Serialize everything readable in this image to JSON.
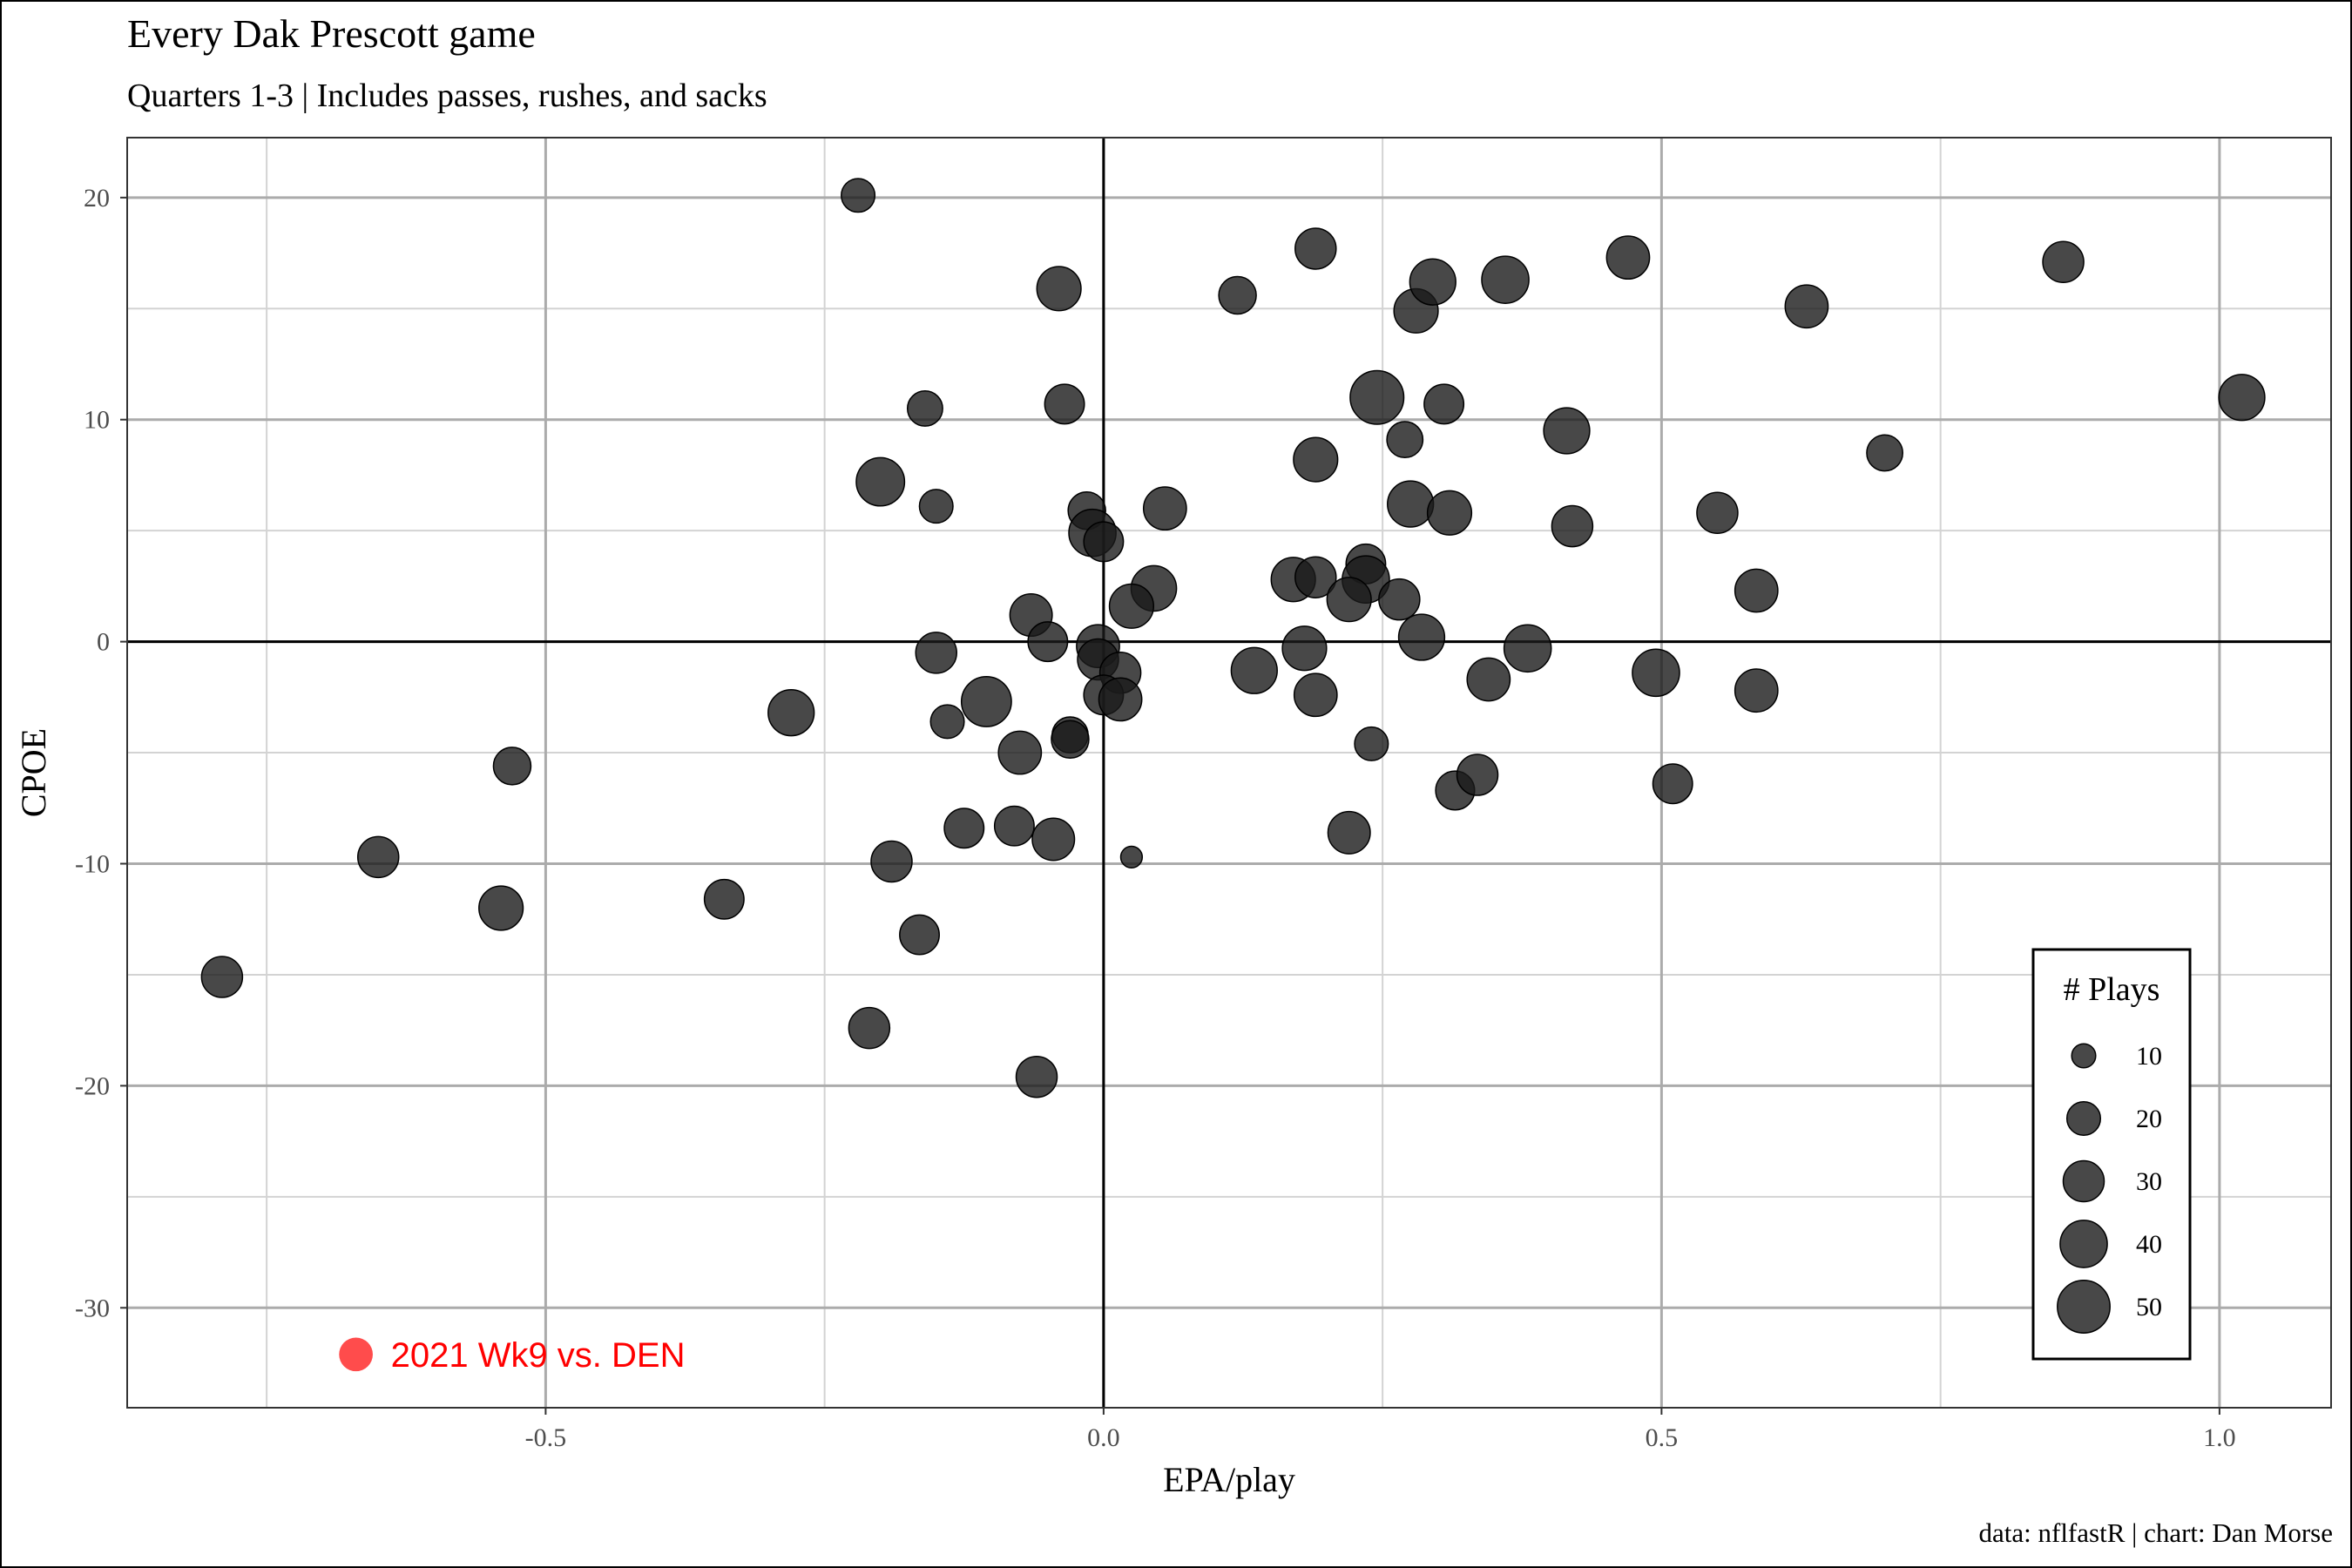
{
  "chart_data": {
    "type": "scatter",
    "title": "Every Dak Prescott game",
    "subtitle": "Quarters 1-3 | Includes passes, rushes, and sacks",
    "xlabel": "EPA/play",
    "ylabel": "CPOE",
    "caption": "data: nflfastR | chart: Dan Morse",
    "xlim": [
      -0.875,
      1.1
    ],
    "ylim": [
      -34.5,
      22.7
    ],
    "x_ticks": [
      -0.5,
      0.0,
      0.5,
      1.0
    ],
    "x_tick_labels": [
      "-0.5",
      "0.0",
      "0.5",
      "1.0"
    ],
    "y_ticks": [
      20,
      10,
      0,
      -10,
      -20,
      -30
    ],
    "y_tick_labels": [
      "20",
      "10",
      "0",
      "-10",
      "-20",
      "-30"
    ],
    "grid": true,
    "reference_lines": {
      "x": 0,
      "y": 0
    },
    "point_color": "#1a1a1a",
    "point_opacity": 0.8,
    "legend": {
      "title": "# Plays",
      "placement": "bottom-right",
      "sizes": [
        10,
        20,
        30,
        40,
        50
      ],
      "labels": [
        "10",
        "20",
        "30",
        "40",
        "50"
      ]
    },
    "highlight": {
      "label": "2021 Wk9 vs. DEN",
      "color": "#ff0000",
      "x": -0.67,
      "y": -32.1,
      "plays": 25
    },
    "points": [
      {
        "x": -0.22,
        "y": 20.1,
        "plays": 20
      },
      {
        "x": -0.04,
        "y": 15.9,
        "plays": 35
      },
      {
        "x": 0.12,
        "y": 15.6,
        "plays": 25
      },
      {
        "x": 0.19,
        "y": 17.7,
        "plays": 30
      },
      {
        "x": 0.28,
        "y": 14.9,
        "plays": 35
      },
      {
        "x": 0.295,
        "y": 16.2,
        "plays": 38
      },
      {
        "x": 0.36,
        "y": 16.3,
        "plays": 40
      },
      {
        "x": 0.47,
        "y": 17.3,
        "plays": 33
      },
      {
        "x": 0.63,
        "y": 15.1,
        "plays": 33
      },
      {
        "x": 0.86,
        "y": 17.1,
        "plays": 30
      },
      {
        "x": 1.02,
        "y": 11.0,
        "plays": 38
      },
      {
        "x": -0.16,
        "y": 10.5,
        "plays": 22
      },
      {
        "x": -0.035,
        "y": 10.7,
        "plays": 28
      },
      {
        "x": 0.245,
        "y": 11.0,
        "plays": 52
      },
      {
        "x": 0.305,
        "y": 10.7,
        "plays": 28
      },
      {
        "x": 0.415,
        "y": 9.5,
        "plays": 38
      },
      {
        "x": 0.27,
        "y": 9.1,
        "plays": 23
      },
      {
        "x": 0.7,
        "y": 8.5,
        "plays": 23
      },
      {
        "x": -0.2,
        "y": 7.2,
        "plays": 42
      },
      {
        "x": -0.15,
        "y": 6.1,
        "plays": 20
      },
      {
        "x": 0.19,
        "y": 8.2,
        "plays": 35
      },
      {
        "x": 0.055,
        "y": 6.0,
        "plays": 33
      },
      {
        "x": -0.015,
        "y": 5.9,
        "plays": 25
      },
      {
        "x": -0.01,
        "y": 4.9,
        "plays": 40
      },
      {
        "x": 0.0,
        "y": 4.5,
        "plays": 28
      },
      {
        "x": 0.275,
        "y": 6.2,
        "plays": 38
      },
      {
        "x": 0.31,
        "y": 5.8,
        "plays": 35
      },
      {
        "x": 0.42,
        "y": 5.2,
        "plays": 30
      },
      {
        "x": 0.55,
        "y": 5.8,
        "plays": 30
      },
      {
        "x": 0.045,
        "y": 2.4,
        "plays": 37
      },
      {
        "x": 0.025,
        "y": 1.6,
        "plays": 35
      },
      {
        "x": 0.17,
        "y": 2.8,
        "plays": 35
      },
      {
        "x": 0.19,
        "y": 2.9,
        "plays": 30
      },
      {
        "x": 0.235,
        "y": 3.5,
        "plays": 28
      },
      {
        "x": 0.235,
        "y": 2.8,
        "plays": 40
      },
      {
        "x": 0.22,
        "y": 1.9,
        "plays": 35
      },
      {
        "x": 0.265,
        "y": 1.9,
        "plays": 30
      },
      {
        "x": 0.285,
        "y": 0.2,
        "plays": 38
      },
      {
        "x": 0.585,
        "y": 2.3,
        "plays": 33
      },
      {
        "x": -0.065,
        "y": 1.2,
        "plays": 32
      },
      {
        "x": -0.05,
        "y": 0.0,
        "plays": 28
      },
      {
        "x": -0.005,
        "y": -0.2,
        "plays": 33
      },
      {
        "x": -0.005,
        "y": -0.8,
        "plays": 30
      },
      {
        "x": 0.015,
        "y": -1.4,
        "plays": 30
      },
      {
        "x": 0.0,
        "y": -2.4,
        "plays": 28
      },
      {
        "x": 0.015,
        "y": -2.6,
        "plays": 33
      },
      {
        "x": -0.15,
        "y": -0.5,
        "plays": 30
      },
      {
        "x": -0.105,
        "y": -2.7,
        "plays": 45
      },
      {
        "x": -0.28,
        "y": -3.2,
        "plays": 38
      },
      {
        "x": -0.14,
        "y": -3.6,
        "plays": 20
      },
      {
        "x": -0.03,
        "y": -4.2,
        "plays": 23
      },
      {
        "x": -0.03,
        "y": -4.4,
        "plays": 25
      },
      {
        "x": -0.075,
        "y": -5.0,
        "plays": 33
      },
      {
        "x": 0.135,
        "y": -1.3,
        "plays": 38
      },
      {
        "x": 0.18,
        "y": -0.3,
        "plays": 35
      },
      {
        "x": 0.19,
        "y": -2.4,
        "plays": 33
      },
      {
        "x": 0.38,
        "y": -0.3,
        "plays": 40
      },
      {
        "x": 0.345,
        "y": -1.7,
        "plays": 33
      },
      {
        "x": 0.495,
        "y": -1.4,
        "plays": 40
      },
      {
        "x": 0.585,
        "y": -2.2,
        "plays": 33
      },
      {
        "x": 0.24,
        "y": -4.6,
        "plays": 20
      },
      {
        "x": 0.315,
        "y": -6.7,
        "plays": 27
      },
      {
        "x": 0.335,
        "y": -6.0,
        "plays": 30
      },
      {
        "x": 0.51,
        "y": -6.4,
        "plays": 28
      },
      {
        "x": 0.22,
        "y": -8.6,
        "plays": 32
      },
      {
        "x": -0.53,
        "y": -5.6,
        "plays": 25
      },
      {
        "x": -0.125,
        "y": -8.4,
        "plays": 28
      },
      {
        "x": -0.08,
        "y": -8.3,
        "plays": 28
      },
      {
        "x": -0.045,
        "y": -8.9,
        "plays": 32
      },
      {
        "x": 0.025,
        "y": -9.7,
        "plays": 8
      },
      {
        "x": -0.19,
        "y": -9.9,
        "plays": 30
      },
      {
        "x": -0.65,
        "y": -9.7,
        "plays": 30
      },
      {
        "x": -0.54,
        "y": -12.0,
        "plays": 35
      },
      {
        "x": -0.34,
        "y": -11.6,
        "plays": 28
      },
      {
        "x": -0.165,
        "y": -13.2,
        "plays": 28
      },
      {
        "x": -0.21,
        "y": -17.4,
        "plays": 30
      },
      {
        "x": -0.06,
        "y": -19.6,
        "plays": 30
      },
      {
        "x": -0.79,
        "y": -15.1,
        "plays": 30
      }
    ]
  }
}
